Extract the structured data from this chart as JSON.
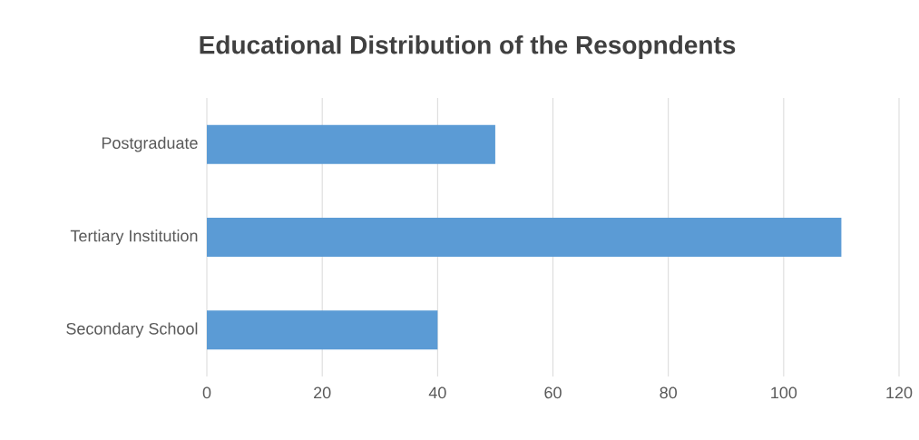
{
  "chart_data": {
    "type": "bar",
    "orientation": "horizontal",
    "title": "Educational Distribution of the Resopndents",
    "categories": [
      "Postgraduate",
      "Tertiary Institution",
      "Secondary School"
    ],
    "values": [
      50,
      110,
      40
    ],
    "color": "#5b9bd5",
    "xlim": [
      0,
      120
    ],
    "xticks": [
      0,
      20,
      40,
      60,
      80,
      100,
      120
    ],
    "grid": "x"
  }
}
